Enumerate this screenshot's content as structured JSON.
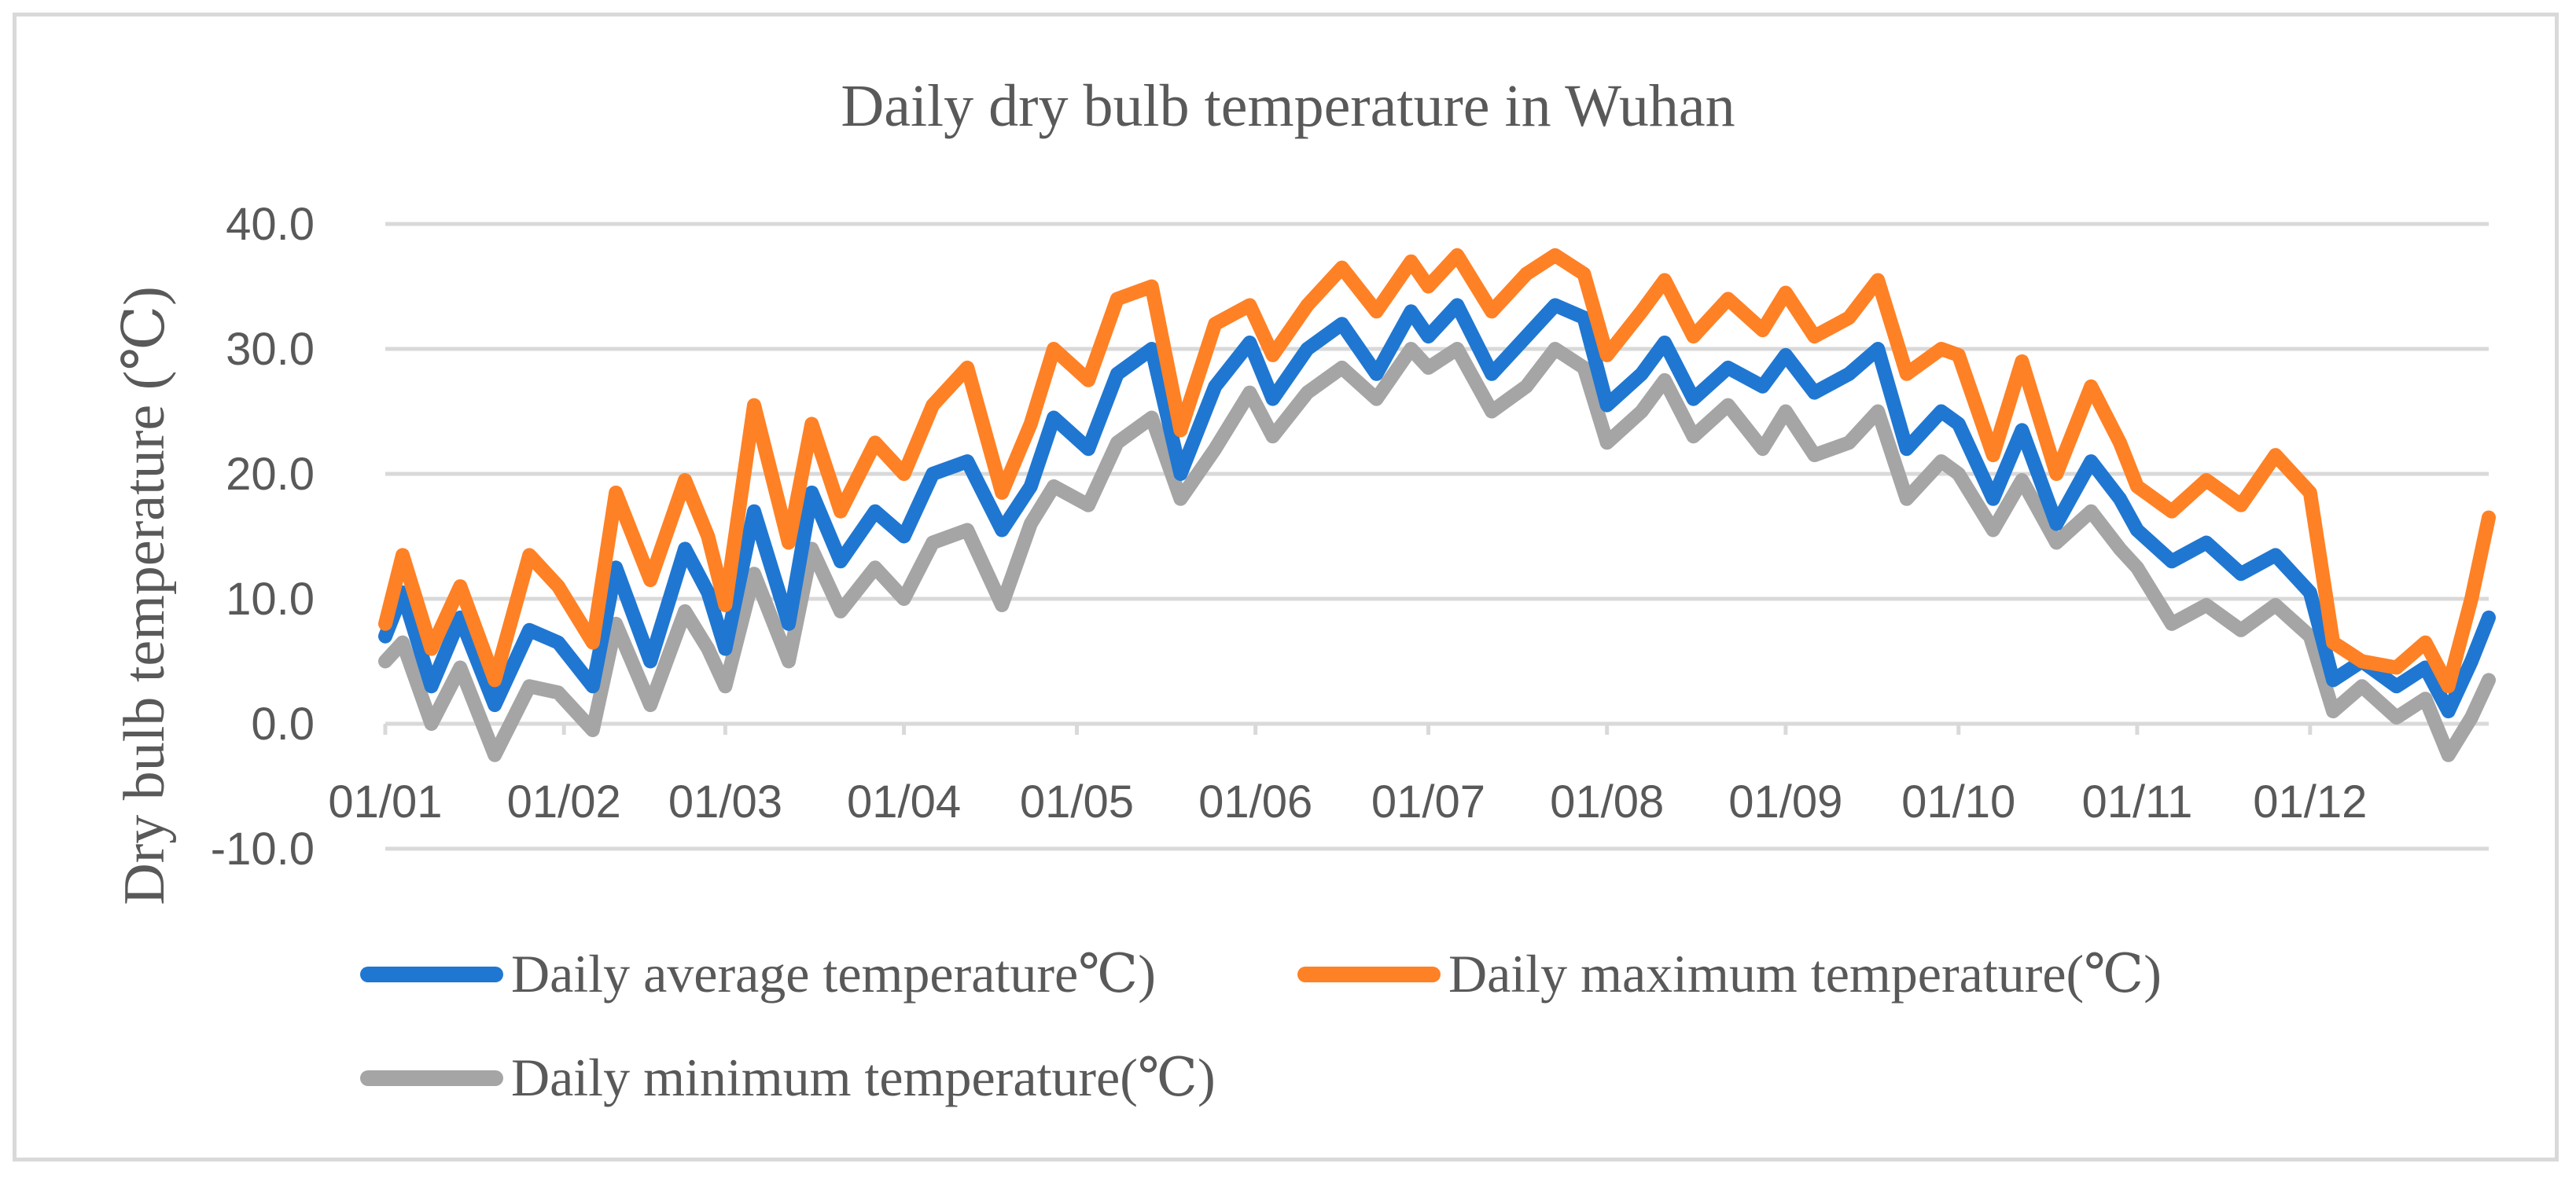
{
  "chart_data": {
    "type": "line",
    "title": "Daily dry bulb temperature in Wuhan",
    "xlabel": "",
    "ylabel": "Dry bulb temperature (℃)",
    "ylim": [
      -10,
      40
    ],
    "y_ticks": [
      40,
      30,
      20,
      10,
      0,
      -10
    ],
    "y_tick_labels": [
      "40.0",
      "30.0",
      "20.0",
      "10.0",
      "0.0",
      "-10.0"
    ],
    "x_range_days": [
      0,
      365
    ],
    "x_tick_days": [
      0,
      31,
      59,
      90,
      120,
      151,
      181,
      212,
      243,
      273,
      304,
      334
    ],
    "x_tick_labels": [
      "01/01",
      "01/02",
      "01/03",
      "01/04",
      "01/05",
      "01/06",
      "01/07",
      "01/08",
      "01/09",
      "01/10",
      "01/11",
      "01/12"
    ],
    "grid": true,
    "legend_position": "bottom",
    "legend": [
      "Daily average temperature℃)",
      "Daily maximum temperature(℃)",
      "Daily minimum temperature(℃)"
    ],
    "series": [
      {
        "name": "Daily average temperature℃)",
        "color": "#1f77d2",
        "x_days": [
          0,
          3,
          8,
          13,
          19,
          25,
          30,
          36,
          40,
          46,
          52,
          56,
          59,
          64,
          70,
          74,
          79,
          85,
          90,
          95,
          101,
          107,
          112,
          116,
          122,
          127,
          133,
          138,
          144,
          150,
          154,
          160,
          166,
          172,
          178,
          181,
          186,
          192,
          198,
          203,
          208,
          212,
          218,
          222,
          227,
          233,
          239,
          243,
          248,
          254,
          259,
          264,
          270,
          273,
          279,
          284,
          290,
          296,
          301,
          304,
          310,
          316,
          322,
          328,
          334,
          338,
          343,
          349,
          354,
          358,
          362,
          365
        ],
        "values": [
          7.0,
          10.5,
          3.0,
          8.5,
          1.5,
          7.5,
          6.5,
          3.0,
          12.5,
          5.0,
          14.0,
          10.5,
          6.0,
          17.0,
          8.0,
          18.5,
          13.0,
          17.0,
          15.0,
          20.0,
          21.0,
          15.5,
          19.0,
          24.5,
          22.0,
          28.0,
          30.0,
          20.0,
          27.0,
          30.5,
          26.0,
          30.0,
          32.0,
          28.0,
          33.0,
          31.0,
          33.5,
          28.0,
          31.0,
          33.5,
          32.5,
          25.5,
          28.0,
          30.5,
          26.0,
          28.5,
          27.0,
          29.5,
          26.5,
          28.0,
          30.0,
          22.0,
          25.0,
          24.0,
          18.0,
          23.5,
          16.0,
          21.0,
          18.0,
          15.5,
          13.0,
          14.5,
          12.0,
          13.5,
          10.5,
          3.5,
          5.0,
          3.0,
          4.5,
          1.0,
          5.0,
          8.5
        ]
      },
      {
        "name": "Daily maximum temperature(℃)",
        "color": "#ff8125",
        "x_days": [
          0,
          3,
          8,
          13,
          19,
          25,
          30,
          36,
          40,
          46,
          52,
          56,
          59,
          64,
          70,
          74,
          79,
          85,
          90,
          95,
          101,
          107,
          112,
          116,
          122,
          127,
          133,
          138,
          144,
          150,
          154,
          160,
          166,
          172,
          178,
          181,
          186,
          192,
          198,
          203,
          208,
          212,
          218,
          222,
          227,
          233,
          239,
          243,
          248,
          254,
          259,
          264,
          270,
          273,
          279,
          284,
          290,
          296,
          301,
          304,
          310,
          316,
          322,
          328,
          334,
          338,
          343,
          349,
          354,
          358,
          362,
          365
        ],
        "values": [
          8.0,
          13.5,
          6.0,
          11.0,
          3.5,
          13.5,
          11.0,
          6.5,
          18.5,
          11.5,
          19.5,
          15.0,
          9.5,
          25.5,
          14.5,
          24.0,
          17.0,
          22.5,
          20.0,
          25.5,
          28.5,
          18.5,
          24.0,
          30.0,
          27.5,
          34.0,
          35.0,
          23.5,
          32.0,
          33.5,
          29.5,
          33.5,
          36.5,
          33.0,
          37.0,
          35.0,
          37.5,
          33.0,
          36.0,
          37.5,
          36.0,
          29.5,
          33.0,
          35.5,
          31.0,
          34.0,
          31.5,
          34.5,
          31.0,
          32.5,
          35.5,
          28.0,
          30.0,
          29.5,
          21.5,
          29.0,
          20.0,
          27.0,
          22.5,
          19.0,
          17.0,
          19.5,
          17.5,
          21.5,
          18.5,
          6.5,
          5.0,
          4.5,
          6.5,
          3.0,
          10.0,
          16.5
        ]
      },
      {
        "name": "Daily minimum temperature(℃)",
        "color": "#a5a5a5",
        "x_days": [
          0,
          3,
          8,
          13,
          19,
          25,
          30,
          36,
          40,
          46,
          52,
          56,
          59,
          64,
          70,
          74,
          79,
          85,
          90,
          95,
          101,
          107,
          112,
          116,
          122,
          127,
          133,
          138,
          144,
          150,
          154,
          160,
          166,
          172,
          178,
          181,
          186,
          192,
          198,
          203,
          208,
          212,
          218,
          222,
          227,
          233,
          239,
          243,
          248,
          254,
          259,
          264,
          270,
          273,
          279,
          284,
          290,
          296,
          301,
          304,
          310,
          316,
          322,
          328,
          334,
          338,
          343,
          349,
          354,
          358,
          362,
          365
        ],
        "values": [
          5.0,
          6.5,
          0.0,
          4.5,
          -2.5,
          3.0,
          2.5,
          -0.5,
          8.0,
          1.5,
          9.0,
          6.0,
          3.0,
          12.0,
          5.0,
          14.0,
          9.0,
          12.5,
          10.0,
          14.5,
          15.5,
          9.5,
          16.0,
          19.0,
          17.5,
          22.5,
          24.5,
          18.0,
          22.0,
          26.5,
          23.0,
          26.5,
          28.5,
          26.0,
          30.0,
          28.5,
          30.0,
          25.0,
          27.0,
          30.0,
          28.5,
          22.5,
          25.0,
          27.5,
          23.0,
          25.5,
          22.0,
          25.0,
          21.5,
          22.5,
          25.0,
          18.0,
          21.0,
          20.0,
          15.5,
          19.5,
          14.5,
          17.0,
          14.0,
          12.5,
          8.0,
          9.5,
          7.5,
          9.5,
          7.0,
          1.0,
          3.0,
          0.5,
          2.0,
          -2.5,
          0.5,
          3.5
        ]
      }
    ]
  }
}
